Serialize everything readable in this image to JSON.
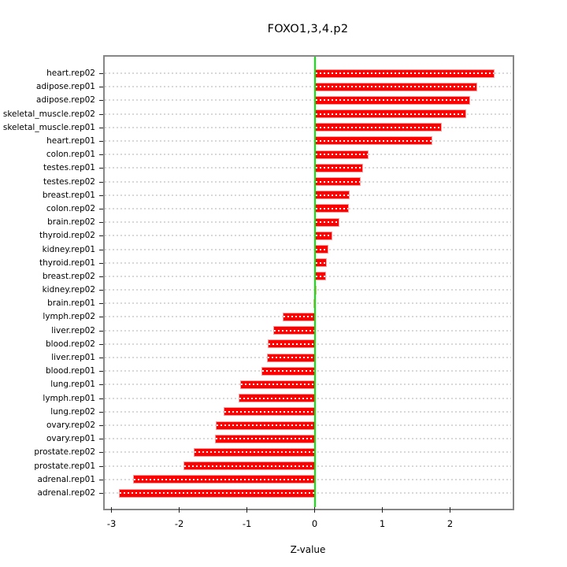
{
  "chart_data": {
    "type": "bar",
    "orientation": "horizontal",
    "title": "FOXO1,3,4.p2",
    "xlabel": "Z-value",
    "ylabel": "",
    "xlim": [
      -3.1,
      2.9
    ],
    "xticks": [
      -3,
      -2,
      -1,
      0,
      1,
      2
    ],
    "grid": true,
    "zero_line_at": 0,
    "legend": "none",
    "categories": [
      "heart.rep02",
      "adipose.rep01",
      "adipose.rep02",
      "skeletal_muscle.rep02",
      "skeletal_muscle.rep01",
      "heart.rep01",
      "colon.rep01",
      "testes.rep01",
      "testes.rep02",
      "breast.rep01",
      "colon.rep02",
      "brain.rep02",
      "thyroid.rep02",
      "kidney.rep01",
      "thyroid.rep01",
      "breast.rep02",
      "kidney.rep02",
      "brain.rep01",
      "lymph.rep02",
      "liver.rep02",
      "blood.rep02",
      "liver.rep01",
      "blood.rep01",
      "lung.rep01",
      "lymph.rep01",
      "lung.rep02",
      "ovary.rep02",
      "ovary.rep01",
      "prostate.rep02",
      "prostate.rep01",
      "adrenal.rep01",
      "adrenal.rep02"
    ],
    "values": [
      2.66,
      2.4,
      2.3,
      2.24,
      1.88,
      1.74,
      0.79,
      0.71,
      0.68,
      0.52,
      0.5,
      0.36,
      0.26,
      0.2,
      0.18,
      0.17,
      0.03,
      -0.02,
      -0.47,
      -0.61,
      -0.69,
      -0.7,
      -0.79,
      -1.1,
      -1.12,
      -1.34,
      -1.46,
      -1.47,
      -1.79,
      -1.94,
      -2.68,
      -2.89
    ],
    "colors": {
      "bar_fill": "#ff0000",
      "bar_border": "#ff9e9e",
      "zero_line": "#00ee00",
      "grid_line": "#d8d8d8",
      "bar_grid_overlay": "#ffffff",
      "box_border": "#878787",
      "tick": "#222222",
      "text": "#000000"
    }
  }
}
